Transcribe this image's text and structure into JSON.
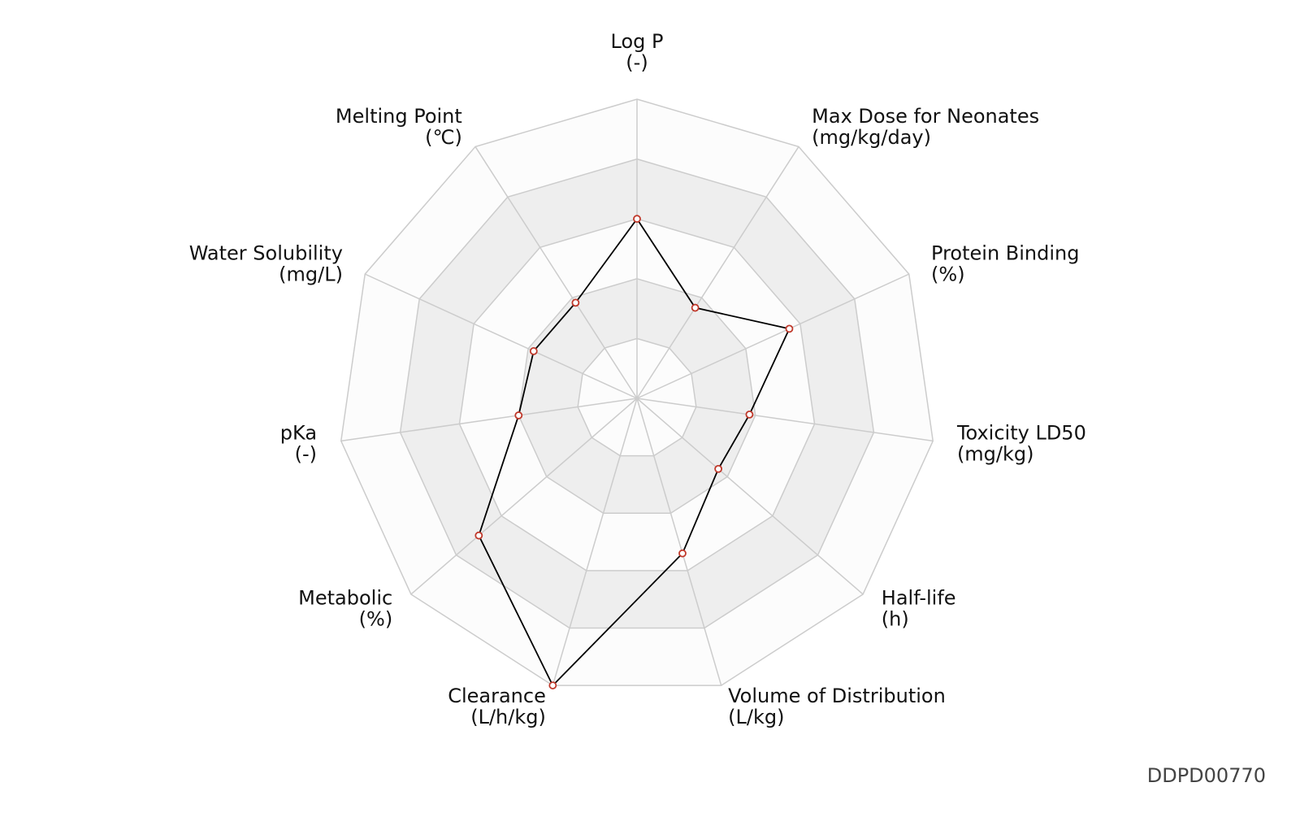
{
  "chart_data": {
    "type": "radar",
    "categories": [
      "Log P",
      "Max Dose for Neonates",
      "Protein Binding",
      "Toxicity LD50",
      "Half-life",
      "Volume of Distribution",
      "Clearance",
      "Metabolic",
      "pKa",
      "Water Solubility",
      "Melting Point"
    ],
    "units": [
      "(-)",
      "(mg/kg/day)",
      "(%)",
      "(mg/kg)",
      "(h)",
      "(L/kg)",
      "(L/h/kg)",
      "(%)",
      "(-)",
      "(mg/L)",
      "(℃)"
    ],
    "values": [
      3.0,
      1.8,
      2.8,
      1.9,
      1.8,
      2.7,
      5.0,
      3.5,
      2.0,
      1.9,
      1.9
    ],
    "rlim": [
      0,
      5
    ],
    "rticks": [
      1,
      2,
      3,
      4,
      5
    ],
    "line_color": "#000000",
    "marker_color": "#c0392b",
    "band_colors": [
      "#fcfcfc",
      "#eeeeee"
    ],
    "grid_color": "#cccccc"
  },
  "footer": "DDPD00770"
}
